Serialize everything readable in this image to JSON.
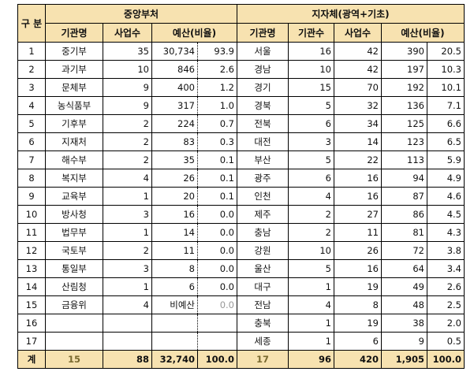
{
  "header": {
    "gubun": "구 분",
    "central": "중앙부처",
    "local": "지자체(광역+기초)",
    "central_cols": [
      "기관명",
      "사업수",
      "예산(비율)"
    ],
    "local_cols": [
      "기관명",
      "기관수",
      "사업수",
      "예산(비율)"
    ]
  },
  "rows": [
    {
      "no": "1",
      "c_name": "중기부",
      "c_proj": "35",
      "c_budget": "30,734",
      "c_ratio": "93.9",
      "l_name": "서울",
      "l_orgs": "16",
      "l_proj": "42",
      "l_budget": "390",
      "l_ratio": "20.5"
    },
    {
      "no": "2",
      "c_name": "과기부",
      "c_proj": "10",
      "c_budget": "846",
      "c_ratio": "2.6",
      "l_name": "경남",
      "l_orgs": "10",
      "l_proj": "42",
      "l_budget": "197",
      "l_ratio": "10.3"
    },
    {
      "no": "3",
      "c_name": "문체부",
      "c_proj": "9",
      "c_budget": "400",
      "c_ratio": "1.2",
      "l_name": "경기",
      "l_orgs": "15",
      "l_proj": "70",
      "l_budget": "192",
      "l_ratio": "10.1"
    },
    {
      "no": "4",
      "c_name": "농식품부",
      "c_proj": "9",
      "c_budget": "317",
      "c_ratio": "1.0",
      "l_name": "경북",
      "l_orgs": "5",
      "l_proj": "32",
      "l_budget": "136",
      "l_ratio": "7.1"
    },
    {
      "no": "5",
      "c_name": "기후부",
      "c_proj": "2",
      "c_budget": "224",
      "c_ratio": "0.7",
      "l_name": "전북",
      "l_orgs": "6",
      "l_proj": "34",
      "l_budget": "125",
      "l_ratio": "6.6"
    },
    {
      "no": "6",
      "c_name": "지재처",
      "c_proj": "2",
      "c_budget": "83",
      "c_ratio": "0.3",
      "l_name": "대전",
      "l_orgs": "3",
      "l_proj": "14",
      "l_budget": "123",
      "l_ratio": "6.5"
    },
    {
      "no": "7",
      "c_name": "해수부",
      "c_proj": "2",
      "c_budget": "35",
      "c_ratio": "0.1",
      "l_name": "부산",
      "l_orgs": "5",
      "l_proj": "22",
      "l_budget": "113",
      "l_ratio": "5.9"
    },
    {
      "no": "8",
      "c_name": "복지부",
      "c_proj": "4",
      "c_budget": "26",
      "c_ratio": "0.1",
      "l_name": "광주",
      "l_orgs": "6",
      "l_proj": "16",
      "l_budget": "94",
      "l_ratio": "4.9"
    },
    {
      "no": "9",
      "c_name": "교육부",
      "c_proj": "1",
      "c_budget": "20",
      "c_ratio": "0.1",
      "l_name": "인천",
      "l_orgs": "4",
      "l_proj": "16",
      "l_budget": "87",
      "l_ratio": "4.6"
    },
    {
      "no": "10",
      "c_name": "방사청",
      "c_proj": "3",
      "c_budget": "16",
      "c_ratio": "0.0",
      "l_name": "제주",
      "l_orgs": "2",
      "l_proj": "27",
      "l_budget": "86",
      "l_ratio": "4.5"
    },
    {
      "no": "11",
      "c_name": "법무부",
      "c_proj": "1",
      "c_budget": "14",
      "c_ratio": "0.0",
      "l_name": "충남",
      "l_orgs": "2",
      "l_proj": "11",
      "l_budget": "81",
      "l_ratio": "4.3"
    },
    {
      "no": "12",
      "c_name": "국토부",
      "c_proj": "2",
      "c_budget": "11",
      "c_ratio": "0.0",
      "l_name": "강원",
      "l_orgs": "10",
      "l_proj": "26",
      "l_budget": "72",
      "l_ratio": "3.8"
    },
    {
      "no": "13",
      "c_name": "통일부",
      "c_proj": "3",
      "c_budget": "8",
      "c_ratio": "0.0",
      "l_name": "울산",
      "l_orgs": "5",
      "l_proj": "16",
      "l_budget": "64",
      "l_ratio": "3.4"
    },
    {
      "no": "14",
      "c_name": "산림청",
      "c_proj": "1",
      "c_budget": "6",
      "c_ratio": "0.0",
      "l_name": "대구",
      "l_orgs": "1",
      "l_proj": "19",
      "l_budget": "49",
      "l_ratio": "2.6"
    },
    {
      "no": "15",
      "c_name": "금융위",
      "c_proj": "4",
      "c_budget": "비예산",
      "c_ratio": "0.0",
      "l_name": "전남",
      "l_orgs": "4",
      "l_proj": "8",
      "l_budget": "48",
      "l_ratio": "2.5"
    },
    {
      "no": "16",
      "c_name": "",
      "c_proj": "",
      "c_budget": "",
      "c_ratio": "",
      "l_name": "충북",
      "l_orgs": "1",
      "l_proj": "19",
      "l_budget": "38",
      "l_ratio": "2.0"
    },
    {
      "no": "17",
      "c_name": "",
      "c_proj": "",
      "c_budget": "",
      "c_ratio": "",
      "l_name": "세종",
      "l_orgs": "1",
      "l_proj": "6",
      "l_budget": "9",
      "l_ratio": "0.5"
    }
  ],
  "total": {
    "label": "계",
    "c_name": "15",
    "c_proj": "88",
    "c_budget": "32,740",
    "c_ratio": "100.0",
    "l_name": "17",
    "l_orgs": "96",
    "l_proj": "420",
    "l_budget": "1,905",
    "l_ratio": "100.0"
  },
  "colors": {
    "header_bg": "#f7e2b0"
  }
}
